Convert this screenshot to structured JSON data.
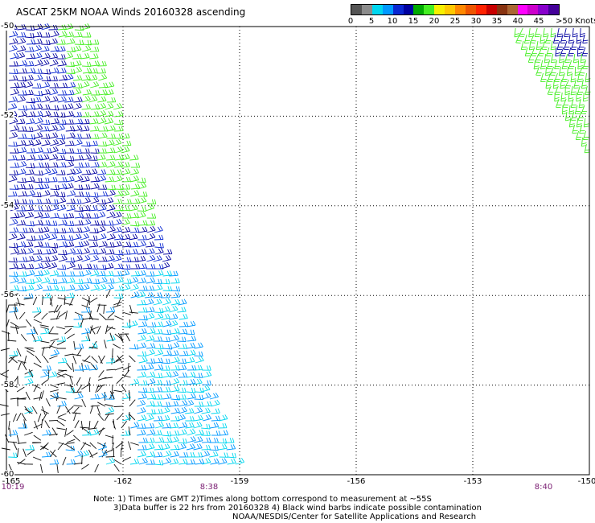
{
  "title": "ASCAT 25KM NOAA Winds 20160328 ascending",
  "colorbar": {
    "colors": [
      "#555555",
      "#8c8c8c",
      "#00d7f0",
      "#0099ff",
      "#0a28d2",
      "#0000a0",
      "#00aa00",
      "#44ee22",
      "#f7f000",
      "#ffc800",
      "#ff8800",
      "#ee5500",
      "#ff2200",
      "#c80000",
      "#883311",
      "#aa6633",
      "#ff00ff",
      "#cc00cc",
      "#8800cc",
      "#440099"
    ],
    "labels": [
      "0",
      "5",
      "10",
      "15",
      "20",
      "25",
      "30",
      "35",
      "40",
      "45",
      ">50 Knots"
    ]
  },
  "map": {
    "lon_labels": [
      "-165",
      "-162",
      "-159",
      "-156",
      "-153",
      "-150"
    ],
    "lat_labels": [
      "-50",
      "-52",
      "-54",
      "-56",
      "-58",
      "-60"
    ],
    "lon_range": [
      -165,
      -150
    ],
    "lat_range": [
      -60,
      -50
    ],
    "grid": "dotted"
  },
  "times": [
    "10:19",
    "8:38",
    "8:40"
  ],
  "notes": {
    "line1": "Note: 1) Times are GMT 2)Times along bottom correspond to measurement at ~55S",
    "line2": "3)Data buffer is 22 hrs from 20160328 4) Black wind barbs indicate possible contamination",
    "line3": "NOAA/NESDIS/Center for Satellite Applications and Research"
  }
}
